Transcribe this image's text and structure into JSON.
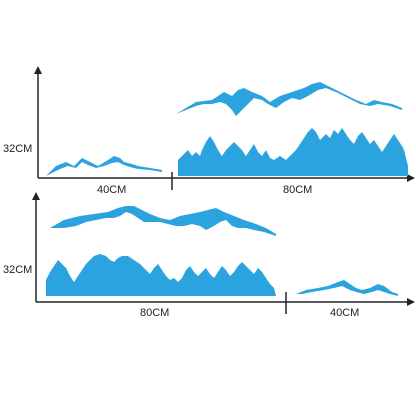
{
  "colors": {
    "decal": "#2aa3de",
    "dimension_line": "#222222",
    "background": "#ffffff"
  },
  "panel_top": {
    "height_label": "32CM",
    "left_width_label": "40CM",
    "right_width_label": "80CM"
  },
  "panel_bottom": {
    "height_label": "32CM",
    "left_width_label": "80CM",
    "right_width_label": "40CM"
  }
}
